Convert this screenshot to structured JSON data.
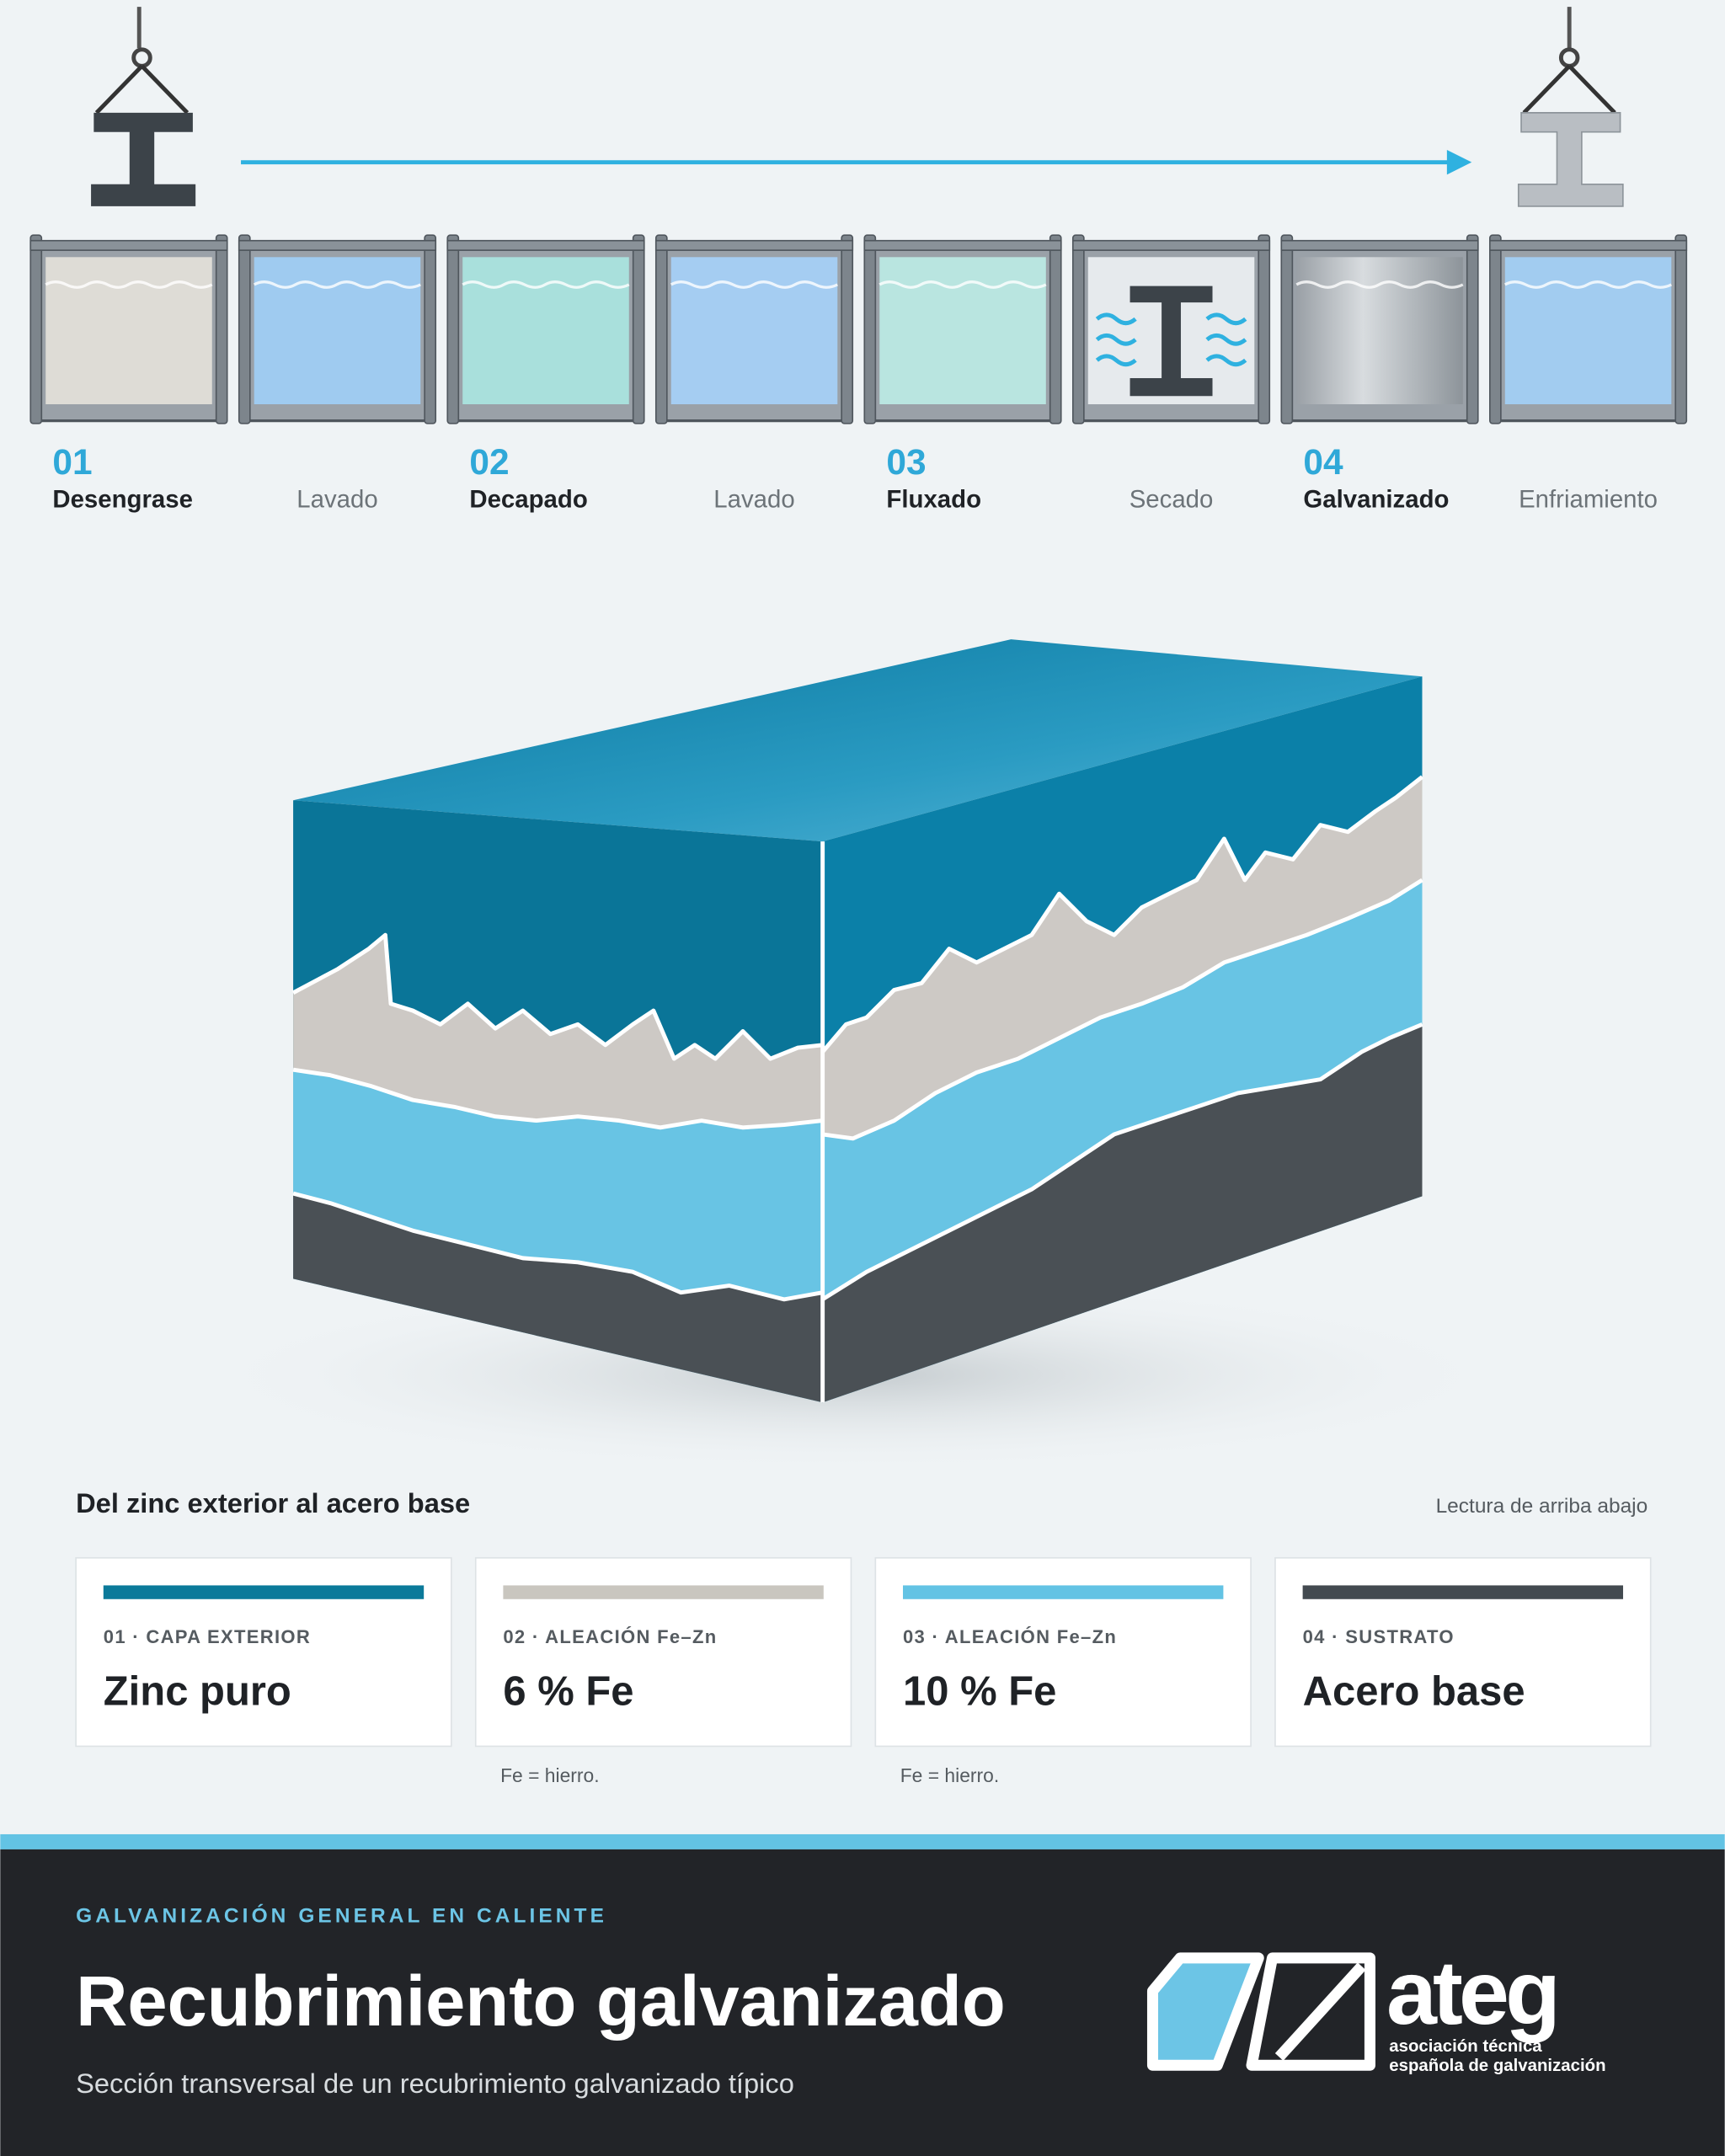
{
  "process": {
    "steps": [
      {
        "number": "01",
        "label": "Desengrase"
      },
      {
        "label": "Lavado"
      },
      {
        "number": "02",
        "label": "Decapado"
      },
      {
        "label": "Lavado"
      },
      {
        "number": "03",
        "label": "Fluxado"
      },
      {
        "label": "Secado"
      },
      {
        "number": "04",
        "label": "Galvanizado"
      },
      {
        "label": "Enfriamiento"
      }
    ]
  },
  "legend": {
    "title": "Del zinc exterior al acero base",
    "note": "Lectura de arriba abajo",
    "cards": [
      {
        "kicker": "01 · CAPA EXTERIOR",
        "value": "Zinc puro"
      },
      {
        "kicker": "02 · ALEACIÓN Fe–Zn",
        "value": "6 % Fe",
        "footnote": "Fe = hierro."
      },
      {
        "kicker": "03 · ALEACIÓN Fe–Zn",
        "value": "10 % Fe",
        "footnote": "Fe = hierro."
      },
      {
        "kicker": "04 · SUSTRATO",
        "value": "Acero base"
      }
    ]
  },
  "footer": {
    "eyebrow": "GALVANIZACIÓN GENERAL EN CALIENTE",
    "title": "Recubrimiento galvanizado",
    "subtitle": "Sección transversal de un recubrimiento galvanizado típico",
    "logo": {
      "wordmark": "ateg",
      "tagline_1": "asociación técnica",
      "tagline_2": "española de galvanización"
    }
  }
}
